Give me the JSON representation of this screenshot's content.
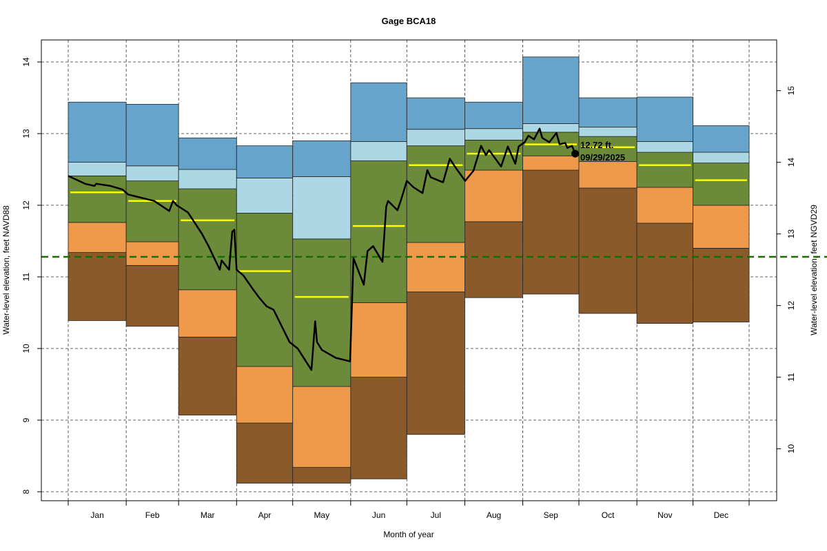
{
  "chart_data": {
    "type": "area",
    "title": "Gage BCA18",
    "xlabel": "Month of year",
    "ylabel": "Water-level elevation, feet NAVD88",
    "ylabel_right": "Water-level elevation, feet NGVD29",
    "ylim": [
      8,
      14
    ],
    "yticks": [
      8,
      9,
      10,
      11,
      12,
      13,
      14
    ],
    "right_axis_offset_ft": 1.4,
    "yticks_right": [
      10,
      11,
      12,
      13,
      14,
      15
    ],
    "grid": true,
    "month_boundaries_day": [
      1,
      32,
      60,
      91,
      121,
      152,
      182,
      213,
      244,
      274,
      305,
      335,
      365
    ],
    "months": [
      "Jan",
      "Feb",
      "Mar",
      "Apr",
      "May",
      "Jun",
      "Jul",
      "Aug",
      "Sep",
      "Oct",
      "Nov",
      "Dec"
    ],
    "band_levels_note": "per month: [min, p10, p25, p75, p90, max] elevation",
    "bands": [
      [
        10.39,
        11.34,
        11.76,
        12.41,
        12.6,
        13.44
      ],
      [
        10.31,
        11.16,
        11.49,
        12.34,
        12.55,
        13.41
      ],
      [
        9.07,
        10.16,
        10.82,
        12.23,
        12.5,
        12.94
      ],
      [
        8.12,
        8.96,
        9.75,
        11.89,
        12.38,
        12.83
      ],
      [
        8.12,
        8.34,
        9.47,
        11.53,
        12.4,
        12.9
      ],
      [
        8.18,
        9.6,
        10.64,
        12.62,
        12.89,
        13.71
      ],
      [
        8.8,
        10.79,
        11.48,
        12.83,
        13.06,
        13.5
      ],
      [
        10.71,
        11.77,
        12.49,
        12.91,
        13.07,
        13.44
      ],
      [
        10.76,
        12.49,
        12.69,
        13.02,
        13.14,
        14.07
      ],
      [
        10.49,
        12.24,
        12.61,
        12.96,
        13.09,
        13.5
      ],
      [
        10.35,
        11.75,
        12.25,
        12.74,
        12.89,
        13.51
      ],
      [
        10.37,
        11.4,
        12.0,
        12.59,
        12.74,
        13.11
      ]
    ],
    "medians": [
      12.18,
      12.06,
      11.79,
      11.08,
      10.72,
      11.71,
      12.56,
      12.72,
      12.85,
      12.81,
      12.56,
      12.35
    ],
    "band_colors": [
      "#8a5a2b",
      "#ee9a4a",
      "#6b8a3a",
      "#acd8e6",
      "#67a4cc"
    ],
    "median_color": "#ffff00",
    "reference_line": {
      "value": 11.28,
      "color": "#1a6e00"
    },
    "series": [
      {
        "name": "Current year daily water level",
        "color": "#000000",
        "points": [
          [
            1,
            12.41
          ],
          [
            10,
            12.3
          ],
          [
            15,
            12.27
          ],
          [
            16,
            12.3
          ],
          [
            23.5,
            12.27
          ],
          [
            30,
            12.22
          ],
          [
            33,
            12.15
          ],
          [
            47,
            12.06
          ],
          [
            55,
            11.92
          ],
          [
            57,
            12.06
          ],
          [
            59,
            12.0
          ],
          [
            65,
            11.9
          ],
          [
            72.5,
            11.6
          ],
          [
            76,
            11.43
          ],
          [
            82,
            11.1
          ],
          [
            83,
            11.23
          ],
          [
            87,
            11.1
          ],
          [
            88.7,
            11.63
          ],
          [
            89.8,
            11.66
          ],
          [
            91,
            11.1
          ],
          [
            94.6,
            11.02
          ],
          [
            99.7,
            10.83
          ],
          [
            103.4,
            10.7
          ],
          [
            107,
            10.59
          ],
          [
            110.8,
            10.54
          ],
          [
            119.3,
            10.09
          ],
          [
            123.7,
            10.0
          ],
          [
            131,
            9.7
          ],
          [
            133,
            10.38
          ],
          [
            134,
            10.09
          ],
          [
            136.6,
            9.98
          ],
          [
            144,
            9.87
          ],
          [
            151.7,
            9.82
          ],
          [
            153.5,
            11.26
          ],
          [
            159,
            10.89
          ],
          [
            161,
            11.36
          ],
          [
            164,
            11.43
          ],
          [
            169,
            11.21
          ],
          [
            171,
            11.98
          ],
          [
            172,
            12.06
          ],
          [
            177,
            11.93
          ],
          [
            179,
            12.08
          ],
          [
            182,
            12.34
          ],
          [
            185.6,
            12.25
          ],
          [
            190.4,
            12.17
          ],
          [
            193,
            12.49
          ],
          [
            194.8,
            12.39
          ],
          [
            201.4,
            12.32
          ],
          [
            205,
            12.65
          ],
          [
            207.7,
            12.54
          ],
          [
            213.2,
            12.34
          ],
          [
            217.6,
            12.48
          ],
          [
            221.7,
            12.83
          ],
          [
            224.3,
            12.7
          ],
          [
            226,
            12.77
          ],
          [
            232.4,
            12.54
          ],
          [
            236,
            12.82
          ],
          [
            240,
            12.58
          ],
          [
            241.8,
            12.82
          ],
          [
            245,
            12.88
          ],
          [
            247,
            12.97
          ],
          [
            250,
            12.92
          ],
          [
            253,
            13.07
          ],
          [
            254.4,
            12.94
          ],
          [
            258.2,
            12.88
          ],
          [
            262,
            13.01
          ],
          [
            263.7,
            12.85
          ],
          [
            266.7,
            12.87
          ],
          [
            267.8,
            12.8
          ],
          [
            270.3,
            12.83
          ],
          [
            272,
            12.72
          ]
        ]
      }
    ],
    "annotation": {
      "value_label": "12.72 ft.",
      "date_label": "09/29/2025",
      "day": 272,
      "value": 12.72
    }
  }
}
